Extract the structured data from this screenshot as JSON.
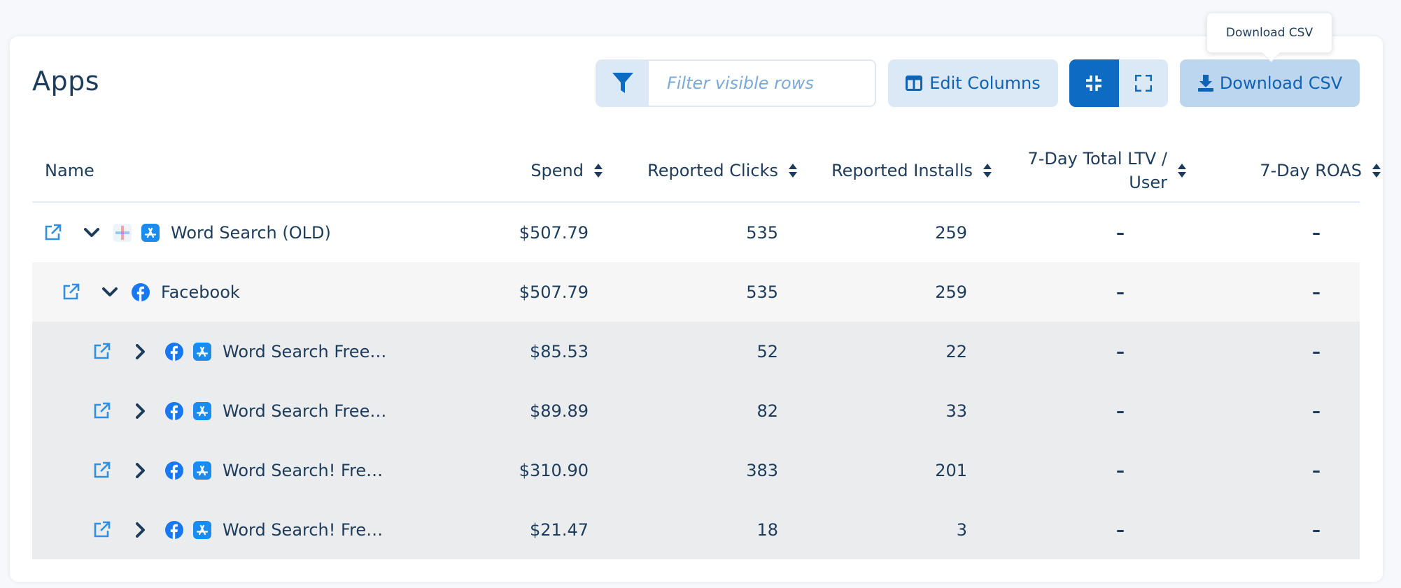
{
  "page": {
    "title": "Apps"
  },
  "toolbar": {
    "filter_placeholder": "Filter visible rows",
    "edit_columns_label": "Edit Columns",
    "download_csv_label": "Download CSV",
    "tooltip": "Download CSV"
  },
  "columns": {
    "name": "Name",
    "spend": "Spend",
    "clicks": "Reported Clicks",
    "installs": "Reported Installs",
    "ltv_line1": "7-Day Total LTV /",
    "ltv_line2": "User",
    "roas": "7-Day ROAS"
  },
  "rows": [
    {
      "name": "Word Search (OLD)",
      "spend": "$507.79",
      "clicks": "535",
      "installs": "259",
      "ltv": "–",
      "roas": "–",
      "level": 0,
      "expanded": true,
      "icons": [
        "multi-network-icon",
        "app-store-icon"
      ]
    },
    {
      "name": "Facebook",
      "spend": "$507.79",
      "clicks": "535",
      "installs": "259",
      "ltv": "–",
      "roas": "–",
      "level": 1,
      "expanded": true,
      "icons": [
        "facebook-icon"
      ]
    },
    {
      "name": "Word Search Free…",
      "spend": "$85.53",
      "clicks": "52",
      "installs": "22",
      "ltv": "–",
      "roas": "–",
      "level": 2,
      "expanded": false,
      "icons": [
        "facebook-icon",
        "app-store-icon"
      ]
    },
    {
      "name": "Word Search Free…",
      "spend": "$89.89",
      "clicks": "82",
      "installs": "33",
      "ltv": "–",
      "roas": "–",
      "level": 2,
      "expanded": false,
      "icons": [
        "facebook-icon",
        "app-store-icon"
      ]
    },
    {
      "name": "Word Search! Fre…",
      "spend": "$310.90",
      "clicks": "383",
      "installs": "201",
      "ltv": "–",
      "roas": "–",
      "level": 2,
      "expanded": false,
      "icons": [
        "facebook-icon",
        "app-store-icon"
      ]
    },
    {
      "name": "Word Search! Fre…",
      "spend": "$21.47",
      "clicks": "18",
      "installs": "3",
      "ltv": "–",
      "roas": "–",
      "level": 2,
      "expanded": false,
      "icons": [
        "facebook-icon",
        "app-store-icon"
      ]
    }
  ],
  "colors": {
    "accent": "#0d6bc4",
    "text": "#1d3c5c",
    "button_bg": "#dbe8f5",
    "download_bg": "#bcd6ef",
    "facebook": "#1877f2",
    "app_store": "#1a8cf0"
  }
}
